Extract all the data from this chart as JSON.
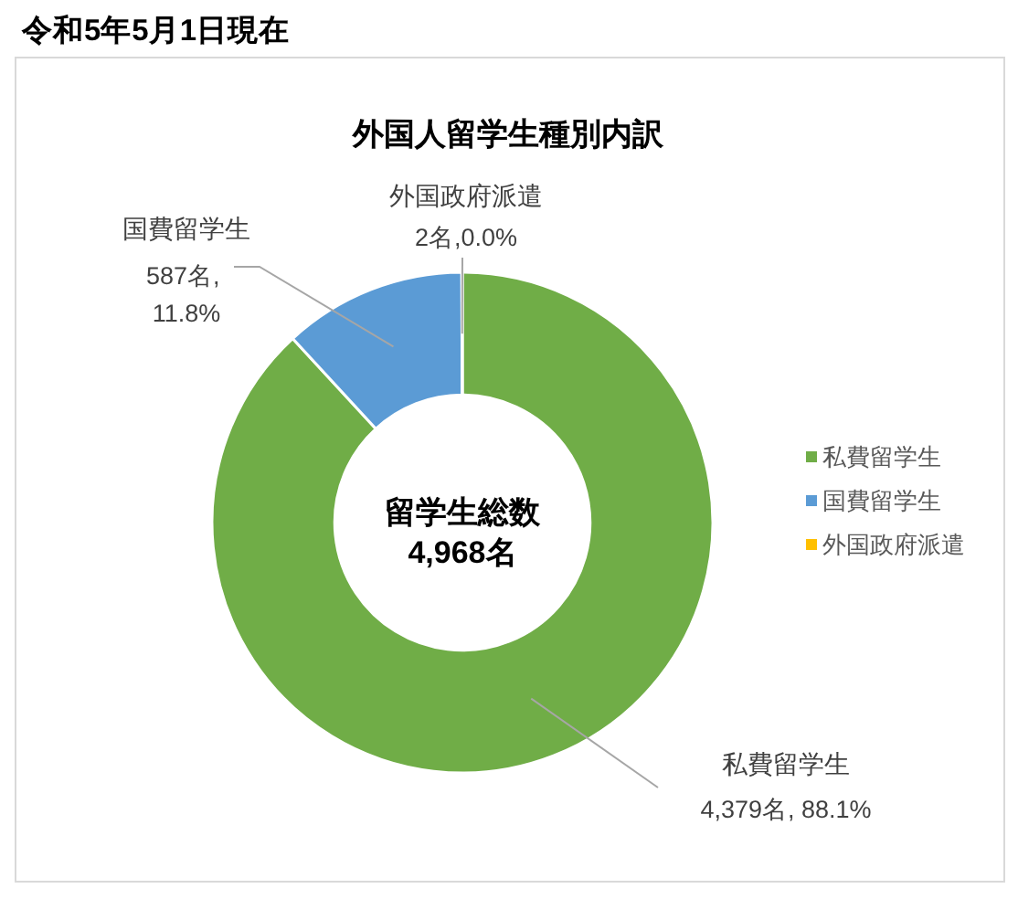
{
  "chart_data": {
    "type": "donut",
    "title": "外国人留学生種別内訳",
    "categories": [
      "私費留学生",
      "国費留学生",
      "外国政府派遣"
    ],
    "values": [
      4379,
      587,
      2
    ],
    "colors": [
      "#70ad47",
      "#5b9bd5",
      "#ffc000"
    ],
    "value_labels": [
      "4,379名, 88.1%",
      "587名, 11.8%",
      "2名,0.0%"
    ],
    "annotations": [
      "令和5年5月1日現在",
      "留学生総数",
      "4,968名"
    ],
    "legend": "right"
  }
}
